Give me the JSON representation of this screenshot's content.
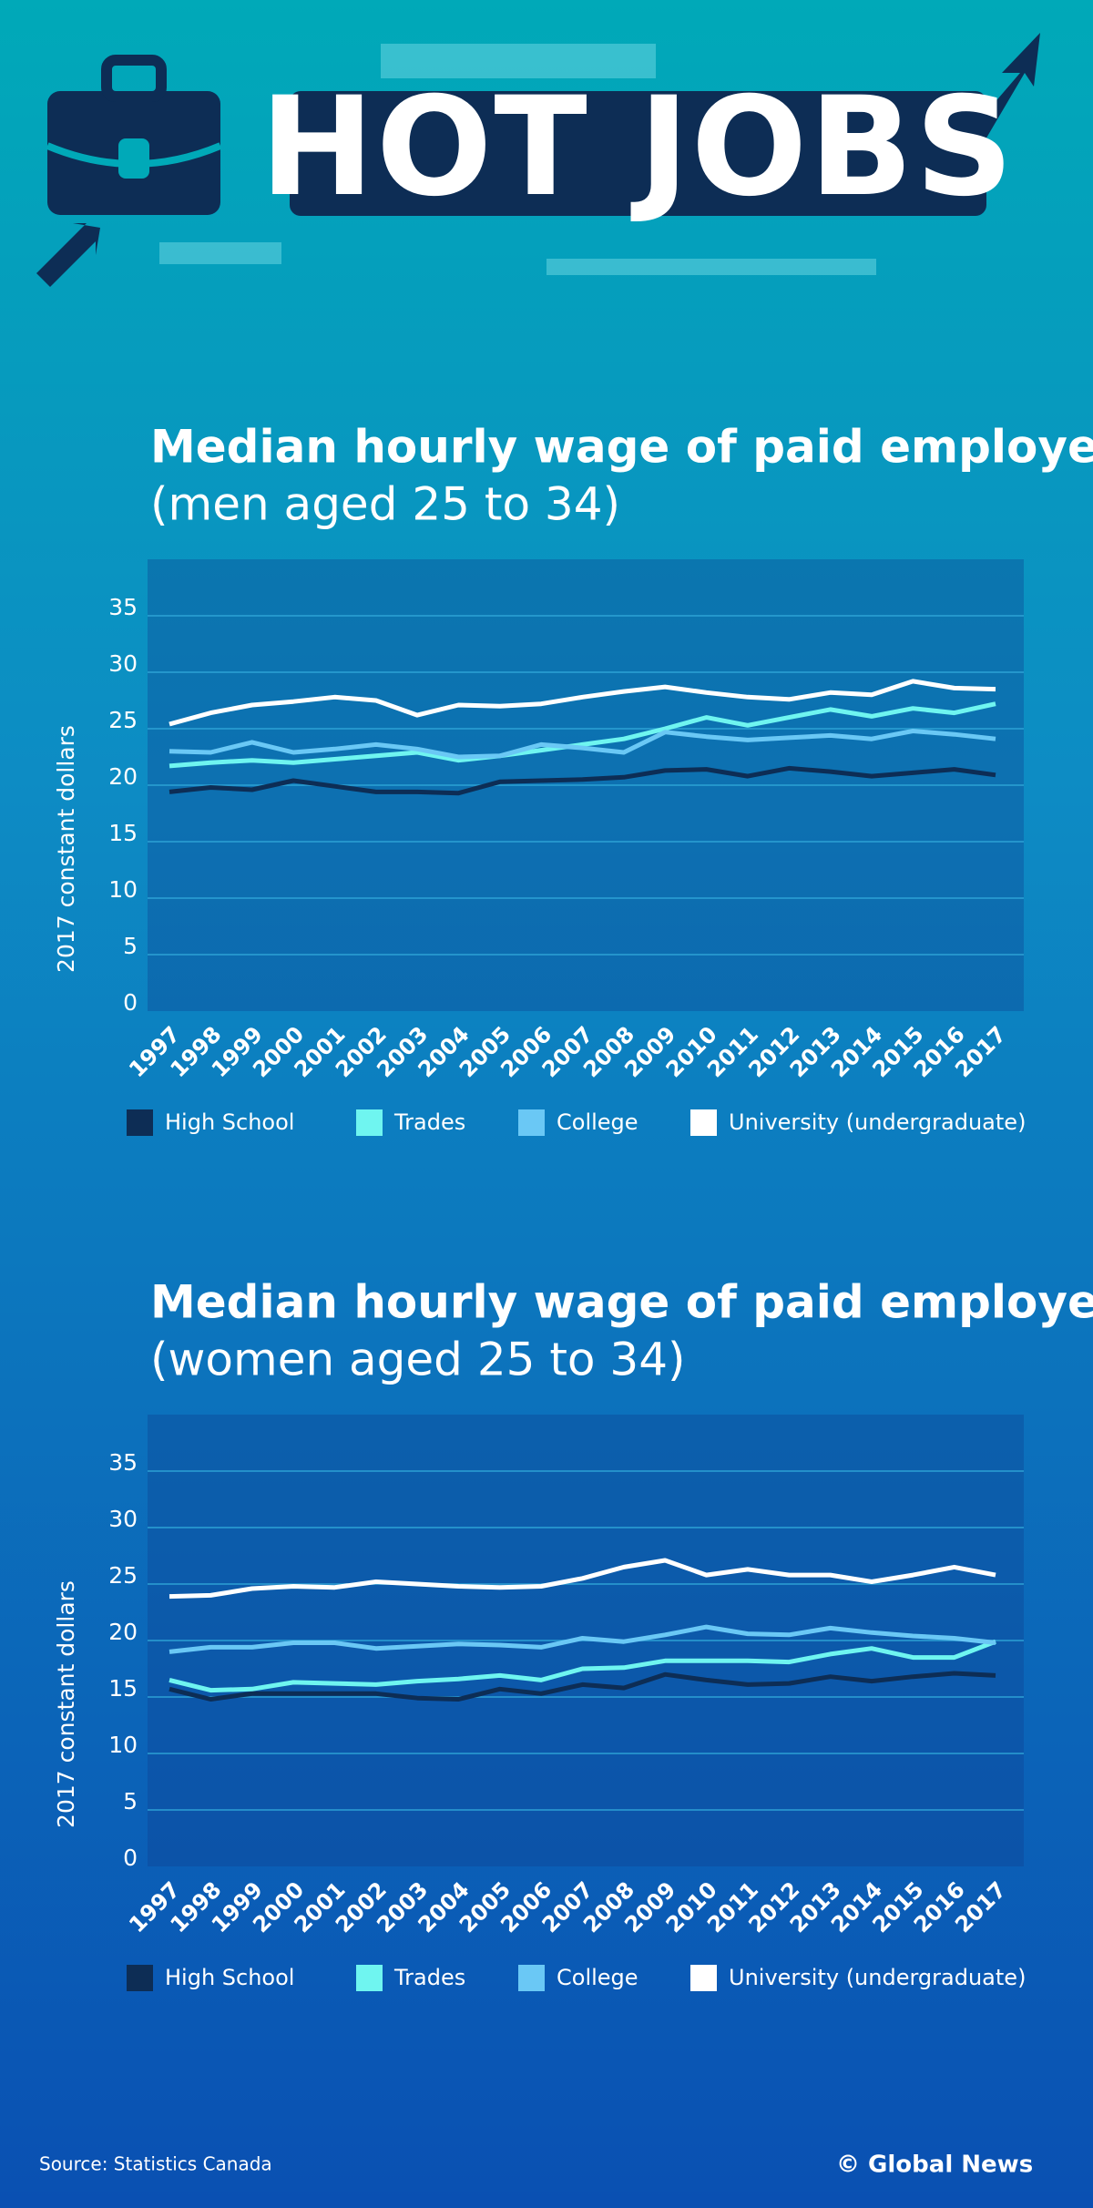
{
  "header": {
    "title": "HOT JOBS"
  },
  "chart_data": [
    {
      "type": "line",
      "title": "Median hourly wage of paid employees",
      "subtitle": "(men aged 25 to 34)",
      "y_label": "2017 constant dollars",
      "categories": [
        "1997",
        "1998",
        "1999",
        "2000",
        "2001",
        "2002",
        "2003",
        "2004",
        "2005",
        "2006",
        "2007",
        "2008",
        "2009",
        "2010",
        "2011",
        "2012",
        "2013",
        "2014",
        "2015",
        "2016",
        "2017"
      ],
      "ylim": [
        0,
        40
      ],
      "yticks": [
        0,
        5,
        10,
        15,
        20,
        25,
        30,
        35
      ],
      "grid": true,
      "series": [
        {
          "name": "High School",
          "color": "#0d2d55",
          "values": [
            19.4,
            19.8,
            19.6,
            20.4,
            19.9,
            19.4,
            19.4,
            19.3,
            20.3,
            20.4,
            20.5,
            20.7,
            21.3,
            21.4,
            20.8,
            21.5,
            21.2,
            20.8,
            21.1,
            21.4,
            20.9
          ]
        },
        {
          "name": "Trades",
          "color": "#6ff5f0",
          "values": [
            21.7,
            22.0,
            22.2,
            22.0,
            22.3,
            22.6,
            22.9,
            22.2,
            22.6,
            23.1,
            23.6,
            24.1,
            25.0,
            26.0,
            25.3,
            26.0,
            26.7,
            26.1,
            26.8,
            26.4,
            27.2
          ]
        },
        {
          "name": "College",
          "color": "#6ac8f5",
          "values": [
            23.0,
            22.9,
            23.8,
            22.9,
            23.2,
            23.6,
            23.2,
            22.5,
            22.6,
            23.6,
            23.3,
            22.9,
            24.7,
            24.3,
            24.0,
            24.2,
            24.4,
            24.1,
            24.8,
            24.5,
            24.1
          ]
        },
        {
          "name": "University (undergraduate)",
          "color": "#ffffff",
          "values": [
            25.4,
            26.4,
            27.1,
            27.4,
            27.8,
            27.5,
            26.2,
            27.1,
            27.0,
            27.2,
            27.8,
            28.3,
            28.7,
            28.2,
            27.8,
            27.6,
            28.2,
            28.0,
            29.2,
            28.6,
            28.5
          ]
        }
      ]
    },
    {
      "type": "line",
      "title": "Median hourly wage of paid employees",
      "subtitle": "(women aged 25 to 34)",
      "y_label": "2017 constant dollars",
      "categories": [
        "1997",
        "1998",
        "1999",
        "2000",
        "2001",
        "2002",
        "2003",
        "2004",
        "2005",
        "2006",
        "2007",
        "2008",
        "2009",
        "2010",
        "2011",
        "2012",
        "2013",
        "2014",
        "2015",
        "2016",
        "2017"
      ],
      "ylim": [
        0,
        40
      ],
      "yticks": [
        0,
        5,
        10,
        15,
        20,
        25,
        30,
        35
      ],
      "grid": true,
      "series": [
        {
          "name": "High School",
          "color": "#0d2d55",
          "values": [
            15.7,
            14.8,
            15.3,
            15.3,
            15.3,
            15.3,
            14.9,
            14.8,
            15.7,
            15.3,
            16.1,
            15.8,
            17.0,
            16.5,
            16.1,
            16.2,
            16.8,
            16.4,
            16.8,
            17.1,
            16.9
          ]
        },
        {
          "name": "Trades",
          "color": "#6ff5f0",
          "values": [
            16.5,
            15.6,
            15.7,
            16.3,
            16.2,
            16.1,
            16.4,
            16.6,
            16.9,
            16.5,
            17.5,
            17.6,
            18.2,
            18.2,
            18.2,
            18.1,
            18.8,
            19.3,
            18.5,
            18.5,
            19.9
          ]
        },
        {
          "name": "College",
          "color": "#6ac8f5",
          "values": [
            19.0,
            19.4,
            19.4,
            19.8,
            19.8,
            19.3,
            19.5,
            19.7,
            19.6,
            19.4,
            20.2,
            19.9,
            20.5,
            21.2,
            20.6,
            20.5,
            21.1,
            20.7,
            20.4,
            20.2,
            19.8
          ]
        },
        {
          "name": "University (undergraduate)",
          "color": "#ffffff",
          "values": [
            23.9,
            24.0,
            24.6,
            24.8,
            24.7,
            25.2,
            25.0,
            24.8,
            24.7,
            24.8,
            25.5,
            26.5,
            27.1,
            25.8,
            26.3,
            25.8,
            25.8,
            25.2,
            25.8,
            26.5,
            25.8
          ]
        }
      ]
    }
  ],
  "footer": {
    "source": "Source: Statistics Canada",
    "credit": "© Global News"
  }
}
